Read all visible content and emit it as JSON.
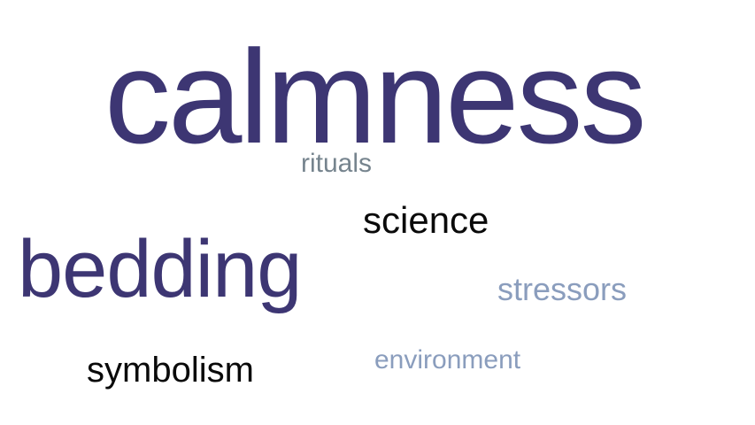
{
  "words": {
    "calmness": {
      "text": "calmness",
      "color": "#3d3673"
    },
    "rituals": {
      "text": "rituals",
      "color": "#76848e"
    },
    "science": {
      "text": "science",
      "color": "#0a0a0a"
    },
    "bedding": {
      "text": "bedding",
      "color": "#3d3673"
    },
    "stressors": {
      "text": "stressors",
      "color": "#8a9dbd"
    },
    "symbolism": {
      "text": "symbolism",
      "color": "#0a0a0a"
    },
    "environment": {
      "text": "environment",
      "color": "#8a9dbd"
    }
  }
}
